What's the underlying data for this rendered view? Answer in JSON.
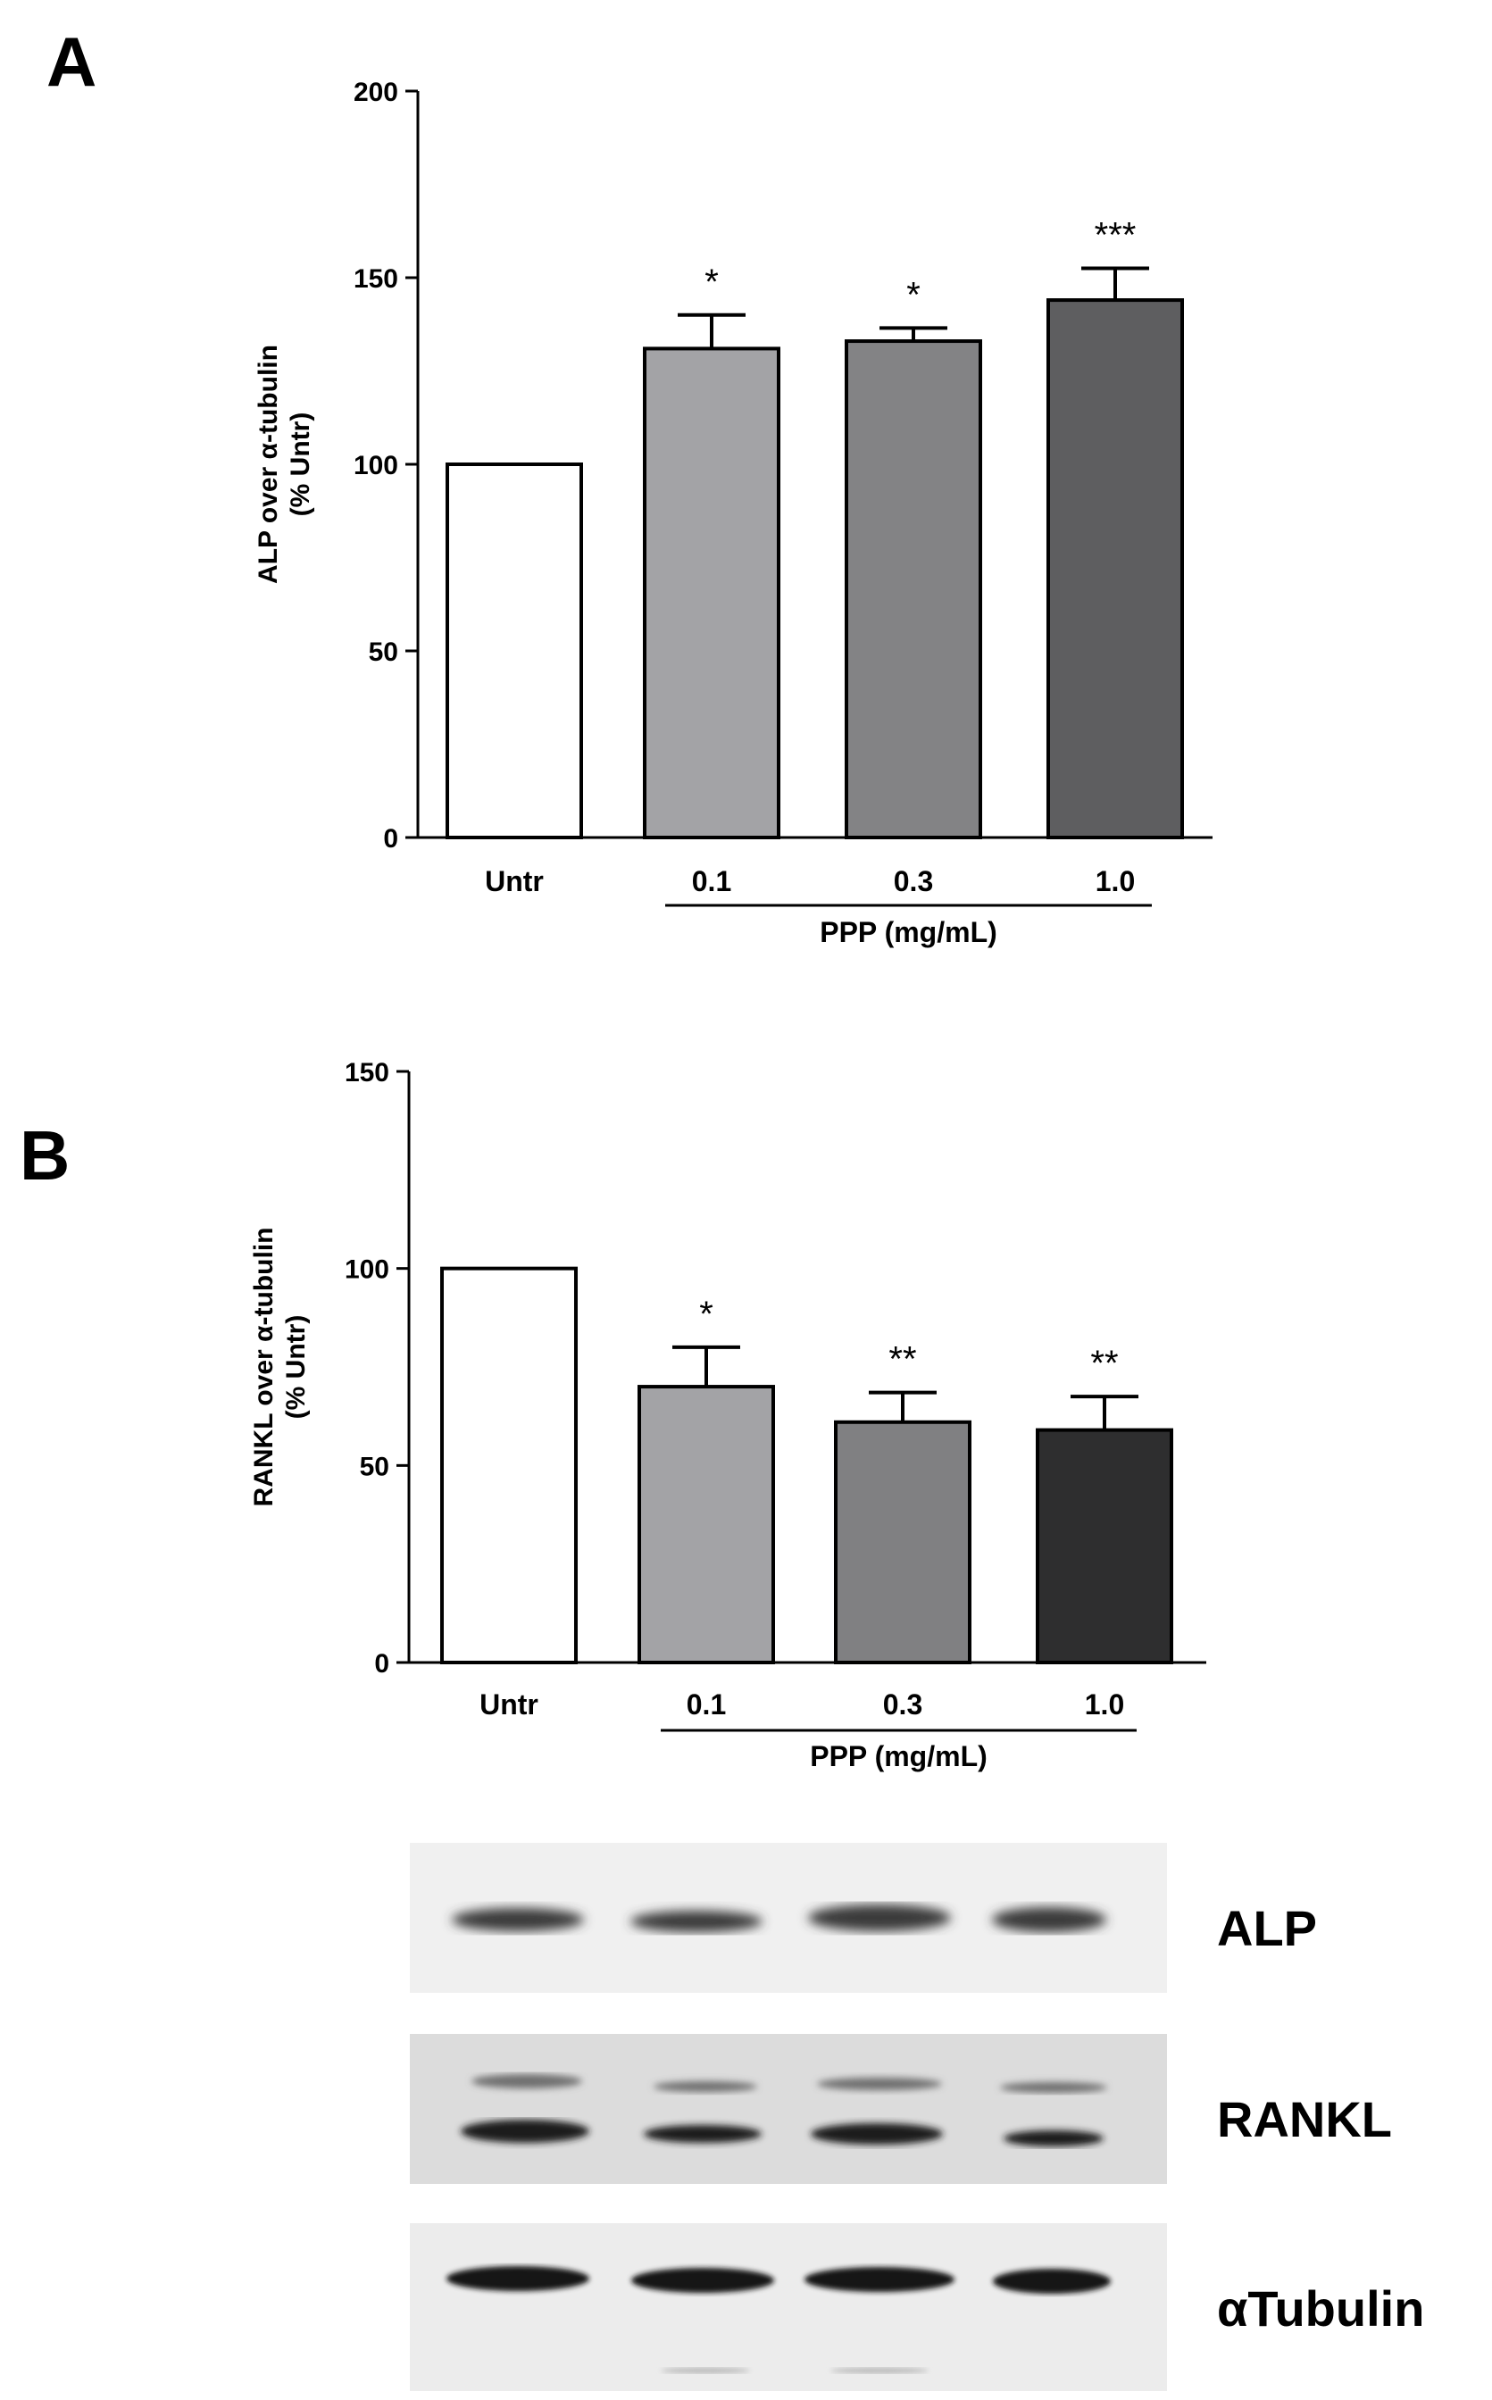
{
  "panels": {
    "A": {
      "letter": "A"
    },
    "B": {
      "letter": "B"
    }
  },
  "chart_data": [
    {
      "type": "bar",
      "panel": "A",
      "ylabel_line1": "ALP over α-tubulin",
      "ylabel_line2": "(%  Untr)",
      "ylim": [
        0,
        200
      ],
      "yticks": [
        "0",
        "50",
        "100",
        "150",
        "200"
      ],
      "categories": [
        "Untr",
        "0.1",
        "0.3",
        "1.0"
      ],
      "values": [
        100,
        131,
        133,
        144
      ],
      "errors": [
        0,
        9,
        3.5,
        8.5
      ],
      "significance": [
        "",
        "*",
        "*",
        "***"
      ],
      "bar_colors": [
        "#ffffff",
        "#a3a3a6",
        "#838385",
        "#5e5e60"
      ],
      "group_label": "PPP (mg/mL)"
    },
    {
      "type": "bar",
      "panel": "B",
      "ylabel_line1": "RANKL over α-tubulin",
      "ylabel_line2": "(% Untr)",
      "ylim": [
        0,
        150
      ],
      "yticks": [
        "0",
        "50",
        "100",
        "150"
      ],
      "categories": [
        "Untr",
        "0.1",
        "0.3",
        "1.0"
      ],
      "values": [
        100,
        70,
        61,
        59
      ],
      "errors": [
        0,
        10,
        7.5,
        8.5
      ],
      "significance": [
        "",
        "*",
        "**",
        "**"
      ],
      "bar_colors": [
        "#ffffff",
        "#a3a3a6",
        "#808082",
        "#2e2e2f"
      ],
      "group_label": "PPP (mg/mL)"
    }
  ],
  "blots": {
    "labels": [
      "ALP",
      "RANKL",
      "αTubulin"
    ]
  }
}
